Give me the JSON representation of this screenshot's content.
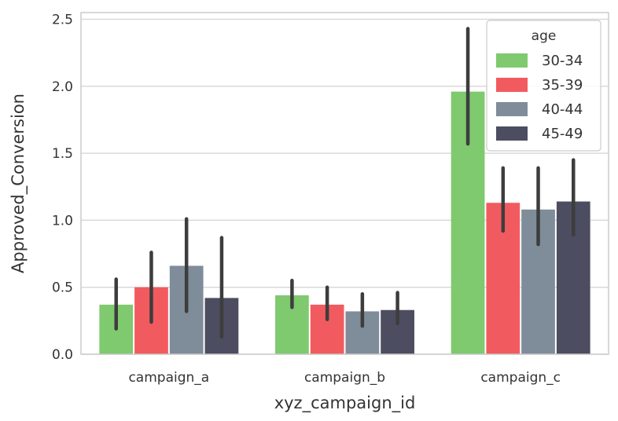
{
  "chart_data": {
    "type": "bar",
    "title": "",
    "xlabel": "xyz_campaign_id",
    "ylabel": "Approved_Conversion",
    "ylim": [
      0,
      2.55
    ],
    "yticks": [
      "0.0",
      "0.5",
      "1.0",
      "1.5",
      "2.0",
      "2.5"
    ],
    "grid": true,
    "categories": [
      "campaign_a",
      "campaign_b",
      "campaign_c"
    ],
    "legend": {
      "title": "age",
      "position": "top-right"
    },
    "series": [
      {
        "name": "30-34",
        "color": "#7fc96f",
        "values": [
          0.37,
          0.44,
          1.96
        ],
        "ci_low": [
          0.19,
          0.35,
          1.57
        ],
        "ci_high": [
          0.56,
          0.55,
          2.43
        ]
      },
      {
        "name": "35-39",
        "color": "#f15b5f",
        "values": [
          0.5,
          0.37,
          1.13
        ],
        "ci_low": [
          0.24,
          0.26,
          0.92
        ],
        "ci_high": [
          0.76,
          0.5,
          1.39
        ]
      },
      {
        "name": "40-44",
        "color": "#7f8c99",
        "values": [
          0.66,
          0.32,
          1.08
        ],
        "ci_low": [
          0.32,
          0.21,
          0.82
        ],
        "ci_high": [
          1.01,
          0.45,
          1.39
        ]
      },
      {
        "name": "45-49",
        "color": "#4c4d60",
        "values": [
          0.42,
          0.33,
          1.14
        ],
        "ci_low": [
          0.13,
          0.23,
          0.89
        ],
        "ci_high": [
          0.87,
          0.46,
          1.45
        ]
      }
    ]
  }
}
